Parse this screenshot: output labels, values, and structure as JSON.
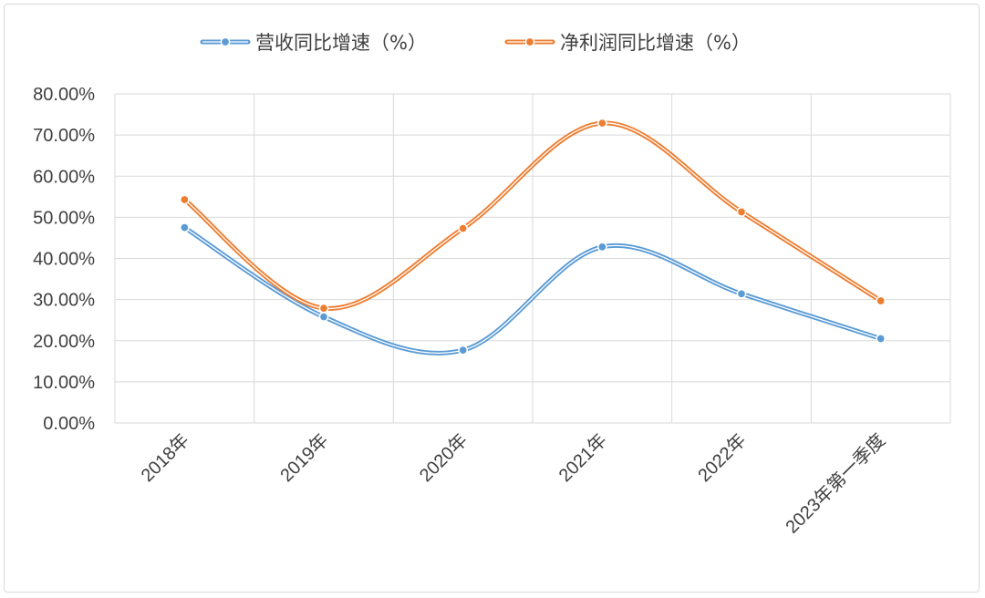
{
  "chart_data": {
    "type": "line",
    "categories": [
      "2018年",
      "2019年",
      "2020年",
      "2021年",
      "2022年",
      "2023年第一季度"
    ],
    "series": [
      {
        "name": "营收同比增速（%）",
        "color": "#5b9bd5",
        "values": [
          0.475,
          0.258,
          0.177,
          0.428,
          0.314,
          0.205
        ]
      },
      {
        "name": "净利润同比增速（%）",
        "color": "#ed7d31",
        "values": [
          0.543,
          0.279,
          0.473,
          0.729,
          0.513,
          0.297
        ]
      }
    ],
    "y_ticks": [
      "0.00%",
      "10.00%",
      "20.00%",
      "30.00%",
      "40.00%",
      "50.00%",
      "60.00%",
      "70.00%",
      "80.00%"
    ],
    "ylim": [
      0,
      0.8
    ],
    "grid": true,
    "legend": "top-center",
    "smooth": true
  }
}
